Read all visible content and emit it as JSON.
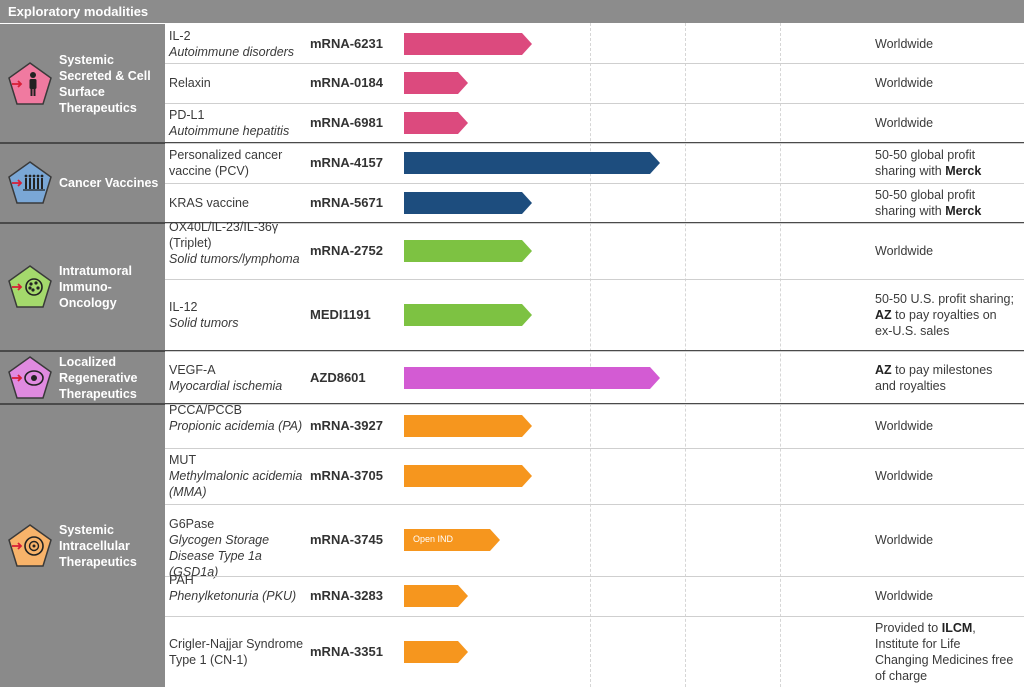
{
  "header": {
    "title": "Exploratory modalities"
  },
  "colors": {
    "header_bg": "#8c8c8c",
    "category_bg": "#8a8a8a",
    "pink": "#dc4a7e",
    "navy": "#1d4d7e",
    "green": "#7dc242",
    "magenta": "#d35bd3",
    "orange": "#f6961e"
  },
  "categories": [
    {
      "name": "Systemic Secreted & Cell Surface Therapeutics",
      "icon": "person-icon",
      "icon_color": "#f07aa0"
    },
    {
      "name": "Cancer Vaccines",
      "icon": "vaccine-icon",
      "icon_color": "#7aa7d6"
    },
    {
      "name": "Intratumoral Immuno-Oncology",
      "icon": "tumor-icon",
      "icon_color": "#a4d96c"
    },
    {
      "name": "Localized Regenerative Therapeutics",
      "icon": "cell-icon",
      "icon_color": "#e08ae0"
    },
    {
      "name": "Systemic Intracellular Therapeutics",
      "icon": "intracellular-icon",
      "icon_color": "#f8b36a"
    }
  ],
  "rows": [
    {
      "target": "IL-2",
      "indication": "Autoimmune disorders",
      "program": "mRNA-6231",
      "stage_fraction": 0.2,
      "bar_label": "",
      "rights": "Worldwide",
      "rights_bold": "",
      "rights_after": ""
    },
    {
      "target": "Relaxin",
      "indication": "",
      "program": "mRNA-0184",
      "stage_fraction": 0.1,
      "bar_label": "",
      "rights": "Worldwide",
      "rights_bold": "",
      "rights_after": ""
    },
    {
      "target": "PD-L1",
      "indication": "Autoimmune hepatitis",
      "program": "mRNA-6981",
      "stage_fraction": 0.1,
      "bar_label": "",
      "rights": "Worldwide",
      "rights_bold": "",
      "rights_after": ""
    },
    {
      "target": "Personalized cancer vaccine (PCV)",
      "indication": "",
      "program": "mRNA-4157",
      "stage_fraction": 0.4,
      "bar_label": "",
      "rights": "50-50 global profit sharing with ",
      "rights_bold": "Merck",
      "rights_after": ""
    },
    {
      "target": "KRAS vaccine",
      "indication": "",
      "program": "mRNA-5671",
      "stage_fraction": 0.2,
      "bar_label": "",
      "rights": "50-50 global profit sharing with ",
      "rights_bold": "Merck",
      "rights_after": ""
    },
    {
      "target": "OX40L/IL-23/IL-36γ (Triplet)",
      "indication": "Solid tumors/lymphoma",
      "program": "mRNA-2752",
      "stage_fraction": 0.2,
      "bar_label": "",
      "rights": "Worldwide",
      "rights_bold": "",
      "rights_after": ""
    },
    {
      "target": "IL-12",
      "indication": "Solid tumors",
      "program": "MEDI1191",
      "stage_fraction": 0.2,
      "bar_label": "",
      "rights": "50-50 U.S. profit sharing; ",
      "rights_bold": "AZ",
      "rights_after": " to pay royalties on ex-U.S. sales"
    },
    {
      "target": "VEGF-A",
      "indication": "Myocardial ischemia",
      "program": "AZD8601",
      "stage_fraction": 0.4,
      "bar_label": "",
      "rights": "",
      "rights_bold": "AZ",
      "rights_after": " to pay milestones and royalties"
    },
    {
      "target": "PCCA/PCCB",
      "indication": "Propionic acidemia (PA)",
      "program": "mRNA-3927",
      "stage_fraction": 0.2,
      "bar_label": "",
      "rights": "Worldwide",
      "rights_bold": "",
      "rights_after": ""
    },
    {
      "target": "MUT",
      "indication": "Methylmalonic acidemia (MMA)",
      "program": "mRNA-3705",
      "stage_fraction": 0.2,
      "bar_label": "",
      "rights": "Worldwide",
      "rights_bold": "",
      "rights_after": ""
    },
    {
      "target": "G6Pase",
      "indication": "Glycogen Storage Disease Type 1a (GSD1a)",
      "program": "mRNA-3745",
      "stage_fraction": 0.15,
      "bar_label": "Open IND",
      "rights": "Worldwide",
      "rights_bold": "",
      "rights_after": ""
    },
    {
      "target": "PAH",
      "indication": "Phenylketonuria (PKU)",
      "program": "mRNA-3283",
      "stage_fraction": 0.1,
      "bar_label": "",
      "rights": "Worldwide",
      "rights_bold": "",
      "rights_after": ""
    },
    {
      "target": "Crigler-Najjar Syndrome Type 1 (CN-1)",
      "indication": "",
      "program": "mRNA-3351",
      "stage_fraction": 0.1,
      "bar_label": "",
      "rights": "Provided to ",
      "rights_bold": "ILCM",
      "rights_after": ", Institute for Life Changing Medicines free of charge"
    }
  ]
}
